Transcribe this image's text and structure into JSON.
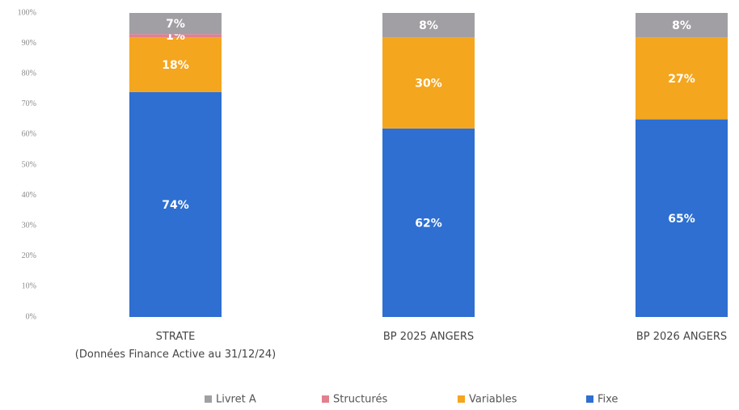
{
  "chart_data": {
    "type": "stacked_bar",
    "categories": [
      "STRATE\n(Données Finance Active au 31/12/24)",
      "BP 2025 ANGERS",
      "BP 2026 ANGERS"
    ],
    "series": [
      {
        "name": "Fixe",
        "color": "#2e6fd1",
        "values": [
          74,
          62,
          65
        ],
        "value_labels": [
          "74%",
          "62%",
          "65%"
        ]
      },
      {
        "name": "Variables",
        "color": "#f4a61f",
        "values": [
          18,
          30,
          27
        ],
        "value_labels": [
          "18%",
          "30%",
          "27%"
        ]
      },
      {
        "name": "Structurés",
        "color": "#e2808f",
        "values": [
          1,
          0,
          0
        ],
        "value_labels": [
          "1%",
          null,
          null
        ]
      },
      {
        "name": "Livret A",
        "color": "#a19fa3",
        "values": [
          7,
          8,
          8
        ],
        "value_labels": [
          "7%",
          "8%",
          "8%"
        ]
      }
    ],
    "ylim": [
      0,
      100
    ],
    "yticks": [
      {
        "value": 0,
        "label": "0%"
      },
      {
        "value": 10,
        "label": "10%"
      },
      {
        "value": 20,
        "label": "20%"
      },
      {
        "value": 30,
        "label": "30%"
      },
      {
        "value": 40,
        "label": "40%"
      },
      {
        "value": 50,
        "label": "50%"
      },
      {
        "value": 60,
        "label": "60%"
      },
      {
        "value": 70,
        "label": "70%"
      },
      {
        "value": 80,
        "label": "80%"
      },
      {
        "value": 90,
        "label": "90%"
      },
      {
        "value": 100,
        "label": "100%"
      }
    ],
    "grid": false,
    "legend": "bottom"
  }
}
